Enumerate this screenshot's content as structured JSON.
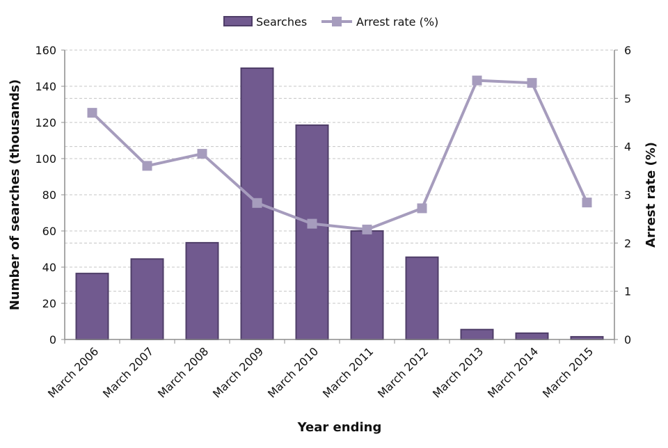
{
  "chart_data": {
    "type": "bar",
    "title": "",
    "categories": [
      "March 2006",
      "March 2007",
      "March 2008",
      "March 2009",
      "March 2010",
      "March 2011",
      "March 2012",
      "March 2013",
      "March 2014",
      "March 2015"
    ],
    "series": [
      {
        "name": "Searches",
        "type": "bar",
        "axis": "left",
        "color": "#715a8f",
        "values": [
          36.5,
          44.5,
          53.5,
          150,
          118.5,
          60,
          45.5,
          5.5,
          3.5,
          1.5
        ]
      },
      {
        "name": "Arrest rate (%)",
        "type": "line",
        "axis": "right",
        "color": "#a69cbd",
        "values": [
          4.7,
          3.6,
          3.85,
          2.83,
          2.4,
          2.28,
          2.72,
          5.37,
          5.32,
          2.84
        ]
      }
    ],
    "xlabel": "Year ending",
    "ylabel": "Number of searches (thousands)",
    "y2label": "Arrest rate (%)",
    "ylim": [
      0,
      160
    ],
    "y2lim": [
      0,
      6
    ],
    "yticks": [
      "0",
      "20",
      "40",
      "60",
      "80",
      "100",
      "120",
      "140",
      "160"
    ],
    "y2ticks": [
      "0",
      "1",
      "2",
      "3",
      "4",
      "5",
      "6"
    ],
    "grid": true,
    "legend_position": "top-center",
    "legend": {
      "bars_label": "Searches",
      "line_label": "Arrest rate (%)"
    }
  }
}
